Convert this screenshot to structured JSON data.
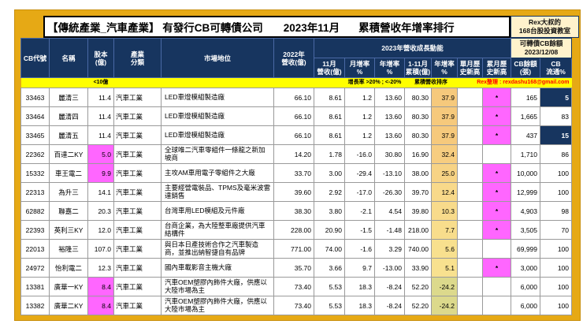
{
  "title": {
    "segment1": "【傳統產業_汽車產業】 有發行CB可轉債公司",
    "segment2": "2023年11月",
    "segment3": "累積營收年增率排行"
  },
  "badge": {
    "line1": "Rex大叔的",
    "line2": "168台股投資教室"
  },
  "header": {
    "growth_group": "2023年營收成長動能",
    "cb_group": "可轉債CB餘額\n2023/12/08",
    "cols": {
      "code": "CB代號",
      "name": "名稱",
      "capital": "股本\n(億)",
      "industry": "產業\n分類",
      "position": "市場地位",
      "rev2022": "2022年\n營收(億)",
      "nov": "11月\n營收(億)",
      "mom": "月增率\n%",
      "yoy": "年增率\n%",
      "cum": "1-11月\n累積(億)",
      "cum_yoy": "年增率\n%",
      "m_high": "單月歷\n史新高",
      "c_high": "累月歷\n史新高",
      "balance": "CB餘額\n(張)",
      "float": "CB\n流通%"
    }
  },
  "legend": {
    "capital_note": "<10億",
    "growth_note": "增長率 >20% ; <-20%",
    "sort_note": "累積營收排序",
    "credit": "Rex整理 : rexdashu168@gmail.com"
  },
  "colors": {
    "frame_gold": "#E6A915",
    "header_navy": "#17355F",
    "highlight_pink": "#FF66FF",
    "legend_yellow": "#FFFF00",
    "cream": "#FFF2CC",
    "credit_red": "#FF0000"
  },
  "rows": [
    {
      "code": "33463",
      "name": "麗清三",
      "capital": "11.4",
      "capital_pink": false,
      "industry": "汽車工業",
      "position": "LED車燈模組製造廠",
      "rev2022": "66.10",
      "nov": "8.61",
      "mom": "1.2",
      "yoy": "13.60",
      "cum": "80.30",
      "cum_yoy": "37.9",
      "cum_yoy_bg": "#F6C97C",
      "m_high": "",
      "c_high": "*",
      "balance": "165",
      "float": "5",
      "float_navy": true
    },
    {
      "code": "33464",
      "name": "麗清四",
      "capital": "11.4",
      "capital_pink": false,
      "industry": "汽車工業",
      "position": "LED車燈模組製造廠",
      "rev2022": "66.10",
      "nov": "8.61",
      "mom": "1.2",
      "yoy": "13.60",
      "cum": "80.30",
      "cum_yoy": "37.9",
      "cum_yoy_bg": "#F6C97C",
      "m_high": "",
      "c_high": "*",
      "balance": "1,665",
      "float": "83",
      "float_navy": false
    },
    {
      "code": "33465",
      "name": "麗清五",
      "capital": "11.4",
      "capital_pink": false,
      "industry": "汽車工業",
      "position": "LED車燈模組製造廠",
      "rev2022": "66.10",
      "nov": "8.61",
      "mom": "1.2",
      "yoy": "13.60",
      "cum": "80.30",
      "cum_yoy": "37.9",
      "cum_yoy_bg": "#F6C97C",
      "m_high": "",
      "c_high": "*",
      "balance": "437",
      "float": "15",
      "float_navy": true
    },
    {
      "code": "22362",
      "name": "百達二KY",
      "capital": "5.0",
      "capital_pink": true,
      "industry": "汽車工業",
      "position": "全球唯二汽車零組件一條龍之新加坡商",
      "rev2022": "14.20",
      "nov": "1.78",
      "mom": "-16.0",
      "yoy": "30.80",
      "cum": "16.90",
      "cum_yoy": "32.4",
      "cum_yoy_bg": "#F7CD80",
      "m_high": "",
      "c_high": "",
      "balance": "1,710",
      "float": "86",
      "float_navy": false
    },
    {
      "code": "15332",
      "name": "車王電二",
      "capital": "9.9",
      "capital_pink": true,
      "industry": "汽車工業",
      "position": "主攻AM車用電子零組件之大廠",
      "rev2022": "33.70",
      "nov": "3.00",
      "mom": "-29.4",
      "yoy": "-13.10",
      "cum": "38.00",
      "cum_yoy": "25.0",
      "cum_yoy_bg": "#F7D385",
      "m_high": "",
      "c_high": "*",
      "balance": "10,000",
      "float": "100",
      "float_navy": false
    },
    {
      "code": "22313",
      "name": "為升三",
      "capital": "14.1",
      "capital_pink": false,
      "industry": "汽車工業",
      "position": "主要經營電裝品、TPMS及毫米波雷達銷售",
      "rev2022": "39.60",
      "nov": "2.92",
      "mom": "-17.0",
      "yoy": "-26.30",
      "cum": "39.70",
      "cum_yoy": "12.4",
      "cum_yoy_bg": "#F8D98A",
      "m_high": "",
      "c_high": "*",
      "balance": "12,999",
      "float": "100",
      "float_navy": false
    },
    {
      "code": "62882",
      "name": "聯嘉二",
      "capital": "20.3",
      "capital_pink": false,
      "industry": "汽車工業",
      "position": "台灣車用LED模組及元件廠",
      "rev2022": "38.30",
      "nov": "3.80",
      "mom": "-2.1",
      "yoy": "4.54",
      "cum": "39.80",
      "cum_yoy": "10.3",
      "cum_yoy_bg": "#F8DB8B",
      "m_high": "",
      "c_high": "*",
      "balance": "4,903",
      "float": "98",
      "float_navy": false
    },
    {
      "code": "22393",
      "name": "英利三KY",
      "capital": "12.0",
      "capital_pink": false,
      "industry": "汽車工業",
      "position": "台商企業，為大陸整車廠提供汽車結構件",
      "rev2022": "228.00",
      "nov": "20.90",
      "mom": "-1.5",
      "yoy": "-1.48",
      "cum": "218.00",
      "cum_yoy": "7.7",
      "cum_yoy_bg": "#F8DD8C",
      "m_high": "",
      "c_high": "*",
      "balance": "3,505",
      "float": "70",
      "float_navy": false
    },
    {
      "code": "22013",
      "name": "裕隆三",
      "capital": "107.0",
      "capital_pink": false,
      "industry": "汽車工業",
      "position": "與日本日產技術合作之汽車製造商，並推出納智捷自有品牌",
      "rev2022": "771.00",
      "nov": "74.00",
      "mom": "-1.6",
      "yoy": "3.29",
      "cum": "740.00",
      "cum_yoy": "5.6",
      "cum_yoy_bg": "#F8E08E",
      "m_high": "",
      "c_high": "",
      "balance": "69,999",
      "float": "100",
      "float_navy": false
    },
    {
      "code": "24972",
      "name": "怡利電二",
      "capital": "12.3",
      "capital_pink": false,
      "industry": "汽車工業",
      "position": "國內車載影音主機大廠",
      "rev2022": "35.70",
      "nov": "3.66",
      "mom": "9.7",
      "yoy": "-13.00",
      "cum": "33.90",
      "cum_yoy": "5.1",
      "cum_yoy_bg": "#F8E18F",
      "m_high": "",
      "c_high": "*",
      "balance": "3,000",
      "float": "100",
      "float_navy": false
    },
    {
      "code": "13381",
      "name": "廣華一KY",
      "capital": "8.4",
      "capital_pink": true,
      "industry": "汽車工業",
      "position": "汽車OEM塑膠內飾件大廠，供應以大陸市場為主",
      "rev2022": "73.40",
      "nov": "5.53",
      "mom": "18.3",
      "yoy": "-8.24",
      "cum": "52.20",
      "cum_yoy": "-24.2",
      "cum_yoy_bg": "#DCD98C",
      "m_high": "",
      "c_high": "",
      "balance": "6,000",
      "float": "100",
      "float_navy": false
    },
    {
      "code": "13382",
      "name": "廣華二KY",
      "capital": "8.4",
      "capital_pink": true,
      "industry": "汽車工業",
      "position": "汽車OEM塑膠內飾件大廠，供應以大陸市場為主",
      "rev2022": "73.40",
      "nov": "5.53",
      "mom": "18.3",
      "yoy": "-8.24",
      "cum": "52.20",
      "cum_yoy": "-24.2",
      "cum_yoy_bg": "#DCD98C",
      "m_high": "",
      "c_high": "",
      "balance": "6,000",
      "float": "100",
      "float_navy": false
    }
  ]
}
